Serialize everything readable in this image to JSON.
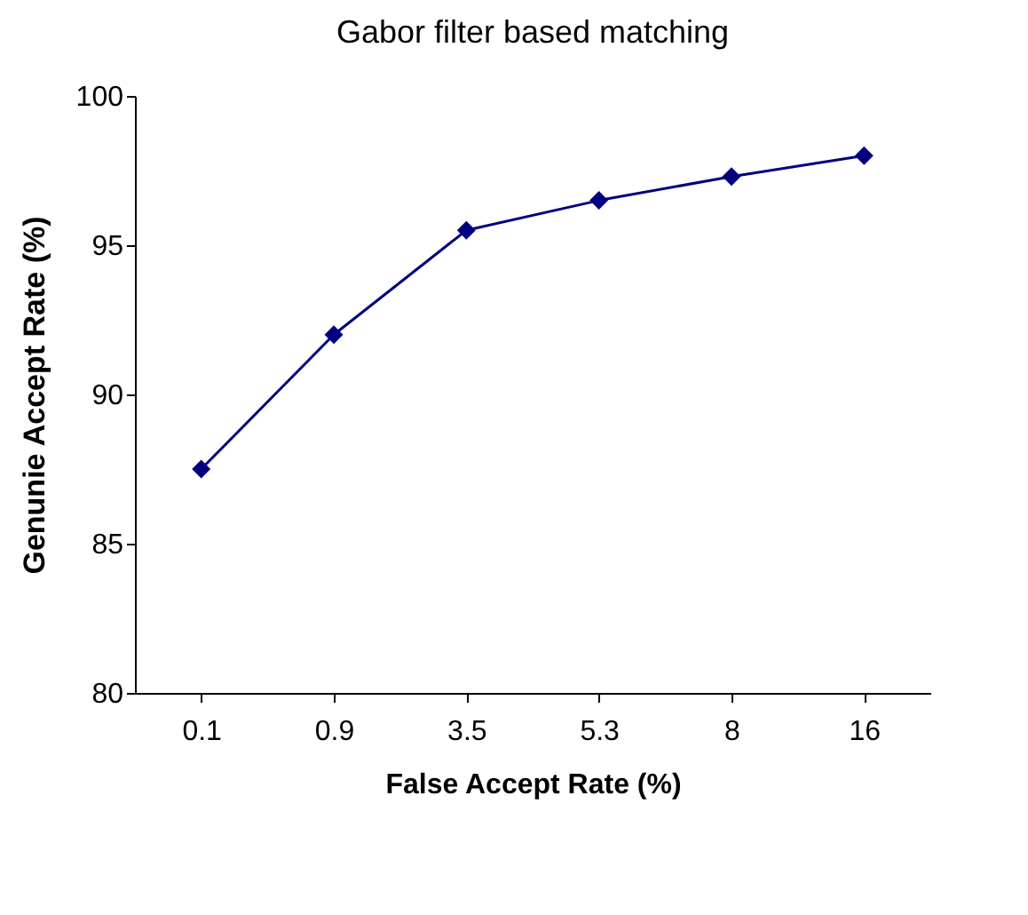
{
  "chart_data": {
    "type": "line",
    "title": "Gabor filter based matching",
    "xlabel": "False Accept Rate (%)",
    "ylabel": "Genunie Accept Rate (%)",
    "categories": [
      "0.1",
      "0.9",
      "3.5",
      "5.3",
      "8",
      "16"
    ],
    "series": [
      {
        "color": "#000080",
        "values": [
          87.5,
          92.0,
          95.5,
          96.5,
          97.3,
          98.0
        ]
      }
    ],
    "ylim": [
      80,
      100
    ],
    "yticks": [
      80,
      85,
      90,
      95,
      100
    ],
    "marker": "diamond",
    "grid": false
  }
}
